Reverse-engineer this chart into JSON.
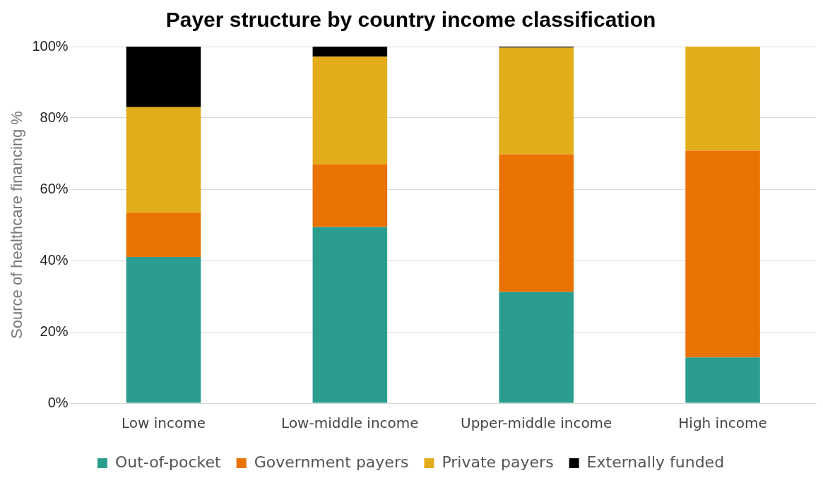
{
  "chart_data": {
    "type": "bar",
    "stacked": true,
    "title": "Payer structure by country income classification",
    "ylabel": "Source of healthcare financing %",
    "categories": [
      "Low income",
      "Low-middle income",
      "Upper-middle income",
      "High income"
    ],
    "series": [
      {
        "name": "Out-of-pocket",
        "color": "#2a9d8f",
        "values": [
          41,
          49.4,
          31.2,
          12.8
        ]
      },
      {
        "name": "Government payers",
        "color": "#e97200",
        "values": [
          12.4,
          17.6,
          38.6,
          58
        ]
      },
      {
        "name": "Private payers",
        "color": "#e3ac1a",
        "values": [
          29.6,
          30.2,
          29.9,
          29.2
        ]
      },
      {
        "name": "Externally funded",
        "color": "#000000",
        "values": [
          17,
          2.8,
          0.3,
          0
        ]
      }
    ],
    "ylim": [
      0,
      100
    ],
    "yticks": [
      {
        "value": 0,
        "label": "0%"
      },
      {
        "value": 20,
        "label": "20%"
      },
      {
        "value": 40,
        "label": "40%"
      },
      {
        "value": 60,
        "label": "60%"
      },
      {
        "value": 80,
        "label": "80%"
      },
      {
        "value": 100,
        "label": "100%"
      }
    ],
    "grid": "y",
    "legend": "bottom"
  }
}
